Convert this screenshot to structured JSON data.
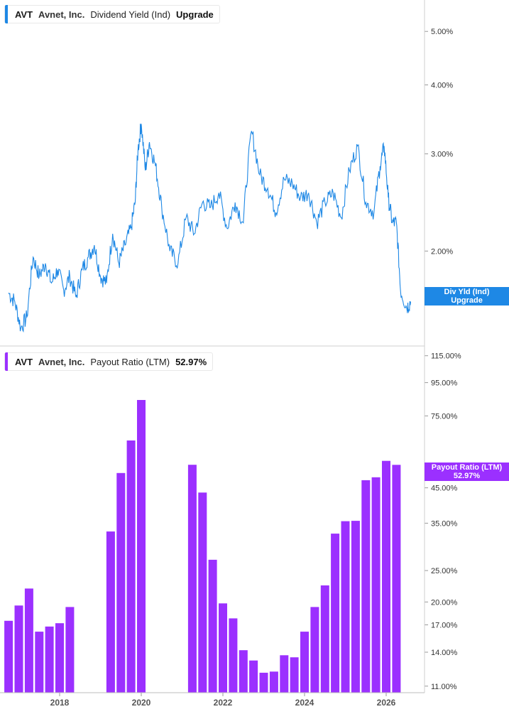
{
  "colors": {
    "yield": "#1e88e5",
    "payout": "#9b30ff"
  },
  "panels": {
    "top": {
      "ticker": "AVT",
      "company": "Avnet, Inc.",
      "metric": "Dividend Yield (Ind)",
      "value": "Upgrade",
      "flag_line1": "Div Yld (Ind)",
      "flag_line2": "Upgrade"
    },
    "bottom": {
      "ticker": "AVT",
      "company": "Avnet, Inc.",
      "metric": "Payout Ratio (LTM)",
      "value": "52.97%",
      "flag_line1": "Payout Ratio (LTM)",
      "flag_line2": "52.97%"
    }
  },
  "x_axis_labels": [
    "2018",
    "2020",
    "2022",
    "2024",
    "2026"
  ],
  "chart_data": [
    {
      "type": "line",
      "series": [
        {
          "name": "Dividend Yield (Ind)"
        }
      ],
      "scale": "log",
      "yticks": [
        "2.00%",
        "3.00%",
        "4.00%",
        "5.00%"
      ],
      "ylim": [
        1.35,
        5.7
      ],
      "x": [
        2016.75,
        2016.9,
        2017.05,
        2017.2,
        2017.35,
        2017.5,
        2017.65,
        2017.8,
        2017.95,
        2018.1,
        2018.25,
        2018.4,
        2018.55,
        2018.7,
        2018.85,
        2019.0,
        2019.15,
        2019.3,
        2019.45,
        2019.6,
        2019.75,
        2019.85,
        2019.92,
        2020.0,
        2020.1,
        2020.2,
        2020.35,
        2020.5,
        2020.7,
        2020.9,
        2021.1,
        2021.3,
        2021.5,
        2021.7,
        2021.9,
        2022.1,
        2022.3,
        2022.5,
        2022.7,
        2022.9,
        2023.1,
        2023.3,
        2023.5,
        2023.7,
        2023.9,
        2024.1,
        2024.3,
        2024.5,
        2024.7,
        2024.9,
        2025.1,
        2025.3,
        2025.5,
        2025.7,
        2025.85,
        2025.95,
        2026.05,
        2026.15,
        2026.25,
        2026.35,
        2026.5,
        2026.6
      ],
      "values": [
        1.68,
        1.62,
        1.45,
        1.52,
        1.95,
        1.8,
        1.9,
        1.75,
        1.85,
        1.7,
        1.8,
        1.65,
        1.85,
        1.95,
        2.05,
        1.8,
        1.75,
        2.15,
        1.9,
        2.05,
        2.2,
        2.45,
        3.05,
        3.4,
        2.8,
        3.15,
        2.85,
        2.4,
        2.0,
        1.9,
        2.3,
        2.15,
        2.45,
        2.4,
        2.55,
        2.2,
        2.45,
        2.25,
        3.3,
        2.75,
        2.6,
        2.35,
        2.7,
        2.65,
        2.5,
        2.55,
        2.25,
        2.45,
        2.55,
        2.3,
        2.8,
        3.1,
        2.45,
        2.35,
        2.85,
        3.1,
        2.5,
        2.25,
        2.25,
        1.7,
        1.58,
        1.62
      ]
    },
    {
      "type": "bar",
      "series": [
        {
          "name": "Payout Ratio (LTM)"
        }
      ],
      "scale": "log",
      "yticks": [
        "11.00%",
        "14.00%",
        "17.00%",
        "20.00%",
        "25.00%",
        "35.00%",
        "45.00%",
        "75.00%",
        "95.00%",
        "115.00%"
      ],
      "ylim": [
        10.5,
        122
      ],
      "x": [
        2016.75,
        2017.0,
        2017.25,
        2017.5,
        2017.75,
        2018.0,
        2018.25,
        2019.25,
        2019.5,
        2019.75,
        2020.0,
        2021.25,
        2021.5,
        2021.75,
        2022.0,
        2022.25,
        2022.5,
        2022.75,
        2023.0,
        2023.25,
        2023.5,
        2023.75,
        2024.0,
        2024.25,
        2024.5,
        2024.75,
        2025.0,
        2025.25,
        2025.5,
        2025.75,
        2026.0,
        2026.25
      ],
      "values": [
        17.5,
        19.5,
        22.0,
        16.2,
        16.8,
        17.2,
        19.3,
        33.0,
        50.0,
        63.0,
        84.0,
        53.0,
        43.5,
        27.0,
        19.8,
        17.8,
        14.2,
        13.2,
        12.1,
        12.2,
        13.7,
        13.5,
        16.2,
        19.3,
        22.5,
        32.5,
        35.5,
        35.6,
        47.5,
        48.5,
        54.5,
        52.97
      ]
    }
  ]
}
